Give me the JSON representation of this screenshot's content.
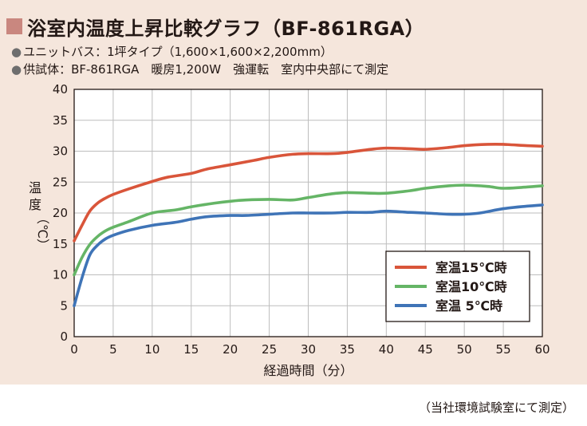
{
  "header": {
    "title": "浴室内温度上昇比較グラフ（BF-861RGA）",
    "note1": "ユニットバス：1坪タイプ（1,600×1,600×2,200mm）",
    "note2": "供試体：BF-861RGA　暖房1,200W　強運転　室内中央部にて測定"
  },
  "footnote": "（当社環境試験室にて測定）",
  "colors": {
    "series_15": "#d9553a",
    "series_10": "#65b566",
    "series_5": "#3f74b7",
    "panel_background": "#f5e6dc",
    "plot_background": "#ffffff",
    "title_square": "#c9877f"
  },
  "chart_data": {
    "type": "line",
    "title": "浴室内温度上昇比較グラフ（BF-861RGA）",
    "xlabel": "経過時間（分）",
    "ylabel": "温度（℃）",
    "ylabel_chars": [
      "温",
      "度",
      "（℃）"
    ],
    "xlim": [
      0,
      60
    ],
    "ylim": [
      0,
      40
    ],
    "xticks": [
      "0",
      "5",
      "10",
      "15",
      "20",
      "25",
      "30",
      "35",
      "40",
      "45",
      "50",
      "55",
      "60"
    ],
    "yticks": [
      "0",
      "5",
      "10",
      "15",
      "20",
      "25",
      "30",
      "35",
      "40"
    ],
    "grid": true,
    "legend_position": "bottom-right",
    "series": [
      {
        "name": "室温15℃時",
        "x": [
          0,
          1,
          2,
          3,
          4,
          5,
          7,
          10,
          12,
          15,
          17,
          20,
          23,
          25,
          28,
          30,
          33,
          35,
          38,
          40,
          43,
          45,
          48,
          50,
          53,
          55,
          58,
          60
        ],
        "values": [
          15.5,
          18,
          20.3,
          21.6,
          22.4,
          23,
          23.9,
          25.1,
          25.8,
          26.4,
          27.1,
          27.8,
          28.5,
          29,
          29.5,
          29.6,
          29.6,
          29.8,
          30.3,
          30.5,
          30.4,
          30.3,
          30.6,
          30.9,
          31.1,
          31.1,
          30.9,
          30.8
        ],
        "color": "#d9553a"
      },
      {
        "name": "室温10℃時",
        "x": [
          0,
          1,
          2,
          3,
          4,
          5,
          7,
          10,
          13,
          15,
          18,
          20,
          22,
          25,
          28,
          30,
          33,
          35,
          38,
          40,
          43,
          45,
          48,
          50,
          53,
          55,
          58,
          60
        ],
        "values": [
          10,
          12.8,
          14.9,
          16.2,
          17.1,
          17.7,
          18.6,
          20,
          20.5,
          21,
          21.6,
          21.9,
          22.1,
          22.2,
          22.1,
          22.5,
          23.1,
          23.3,
          23.2,
          23.2,
          23.6,
          24,
          24.4,
          24.5,
          24.3,
          24,
          24.2,
          24.4
        ],
        "color": "#65b566"
      },
      {
        "name": "室温 5℃時",
        "x": [
          0,
          1,
          2,
          3,
          4,
          5,
          7,
          10,
          13,
          15,
          17,
          20,
          22,
          25,
          28,
          30,
          33,
          35,
          38,
          40,
          43,
          45,
          48,
          50,
          52,
          55,
          58,
          60
        ],
        "values": [
          5,
          9.5,
          13.2,
          14.8,
          15.8,
          16.4,
          17.2,
          18,
          18.5,
          19,
          19.4,
          19.6,
          19.6,
          19.8,
          20,
          20,
          20,
          20.1,
          20.1,
          20.3,
          20.1,
          20,
          19.8,
          19.8,
          20,
          20.7,
          21.1,
          21.3
        ],
        "color": "#3f74b7"
      }
    ]
  }
}
